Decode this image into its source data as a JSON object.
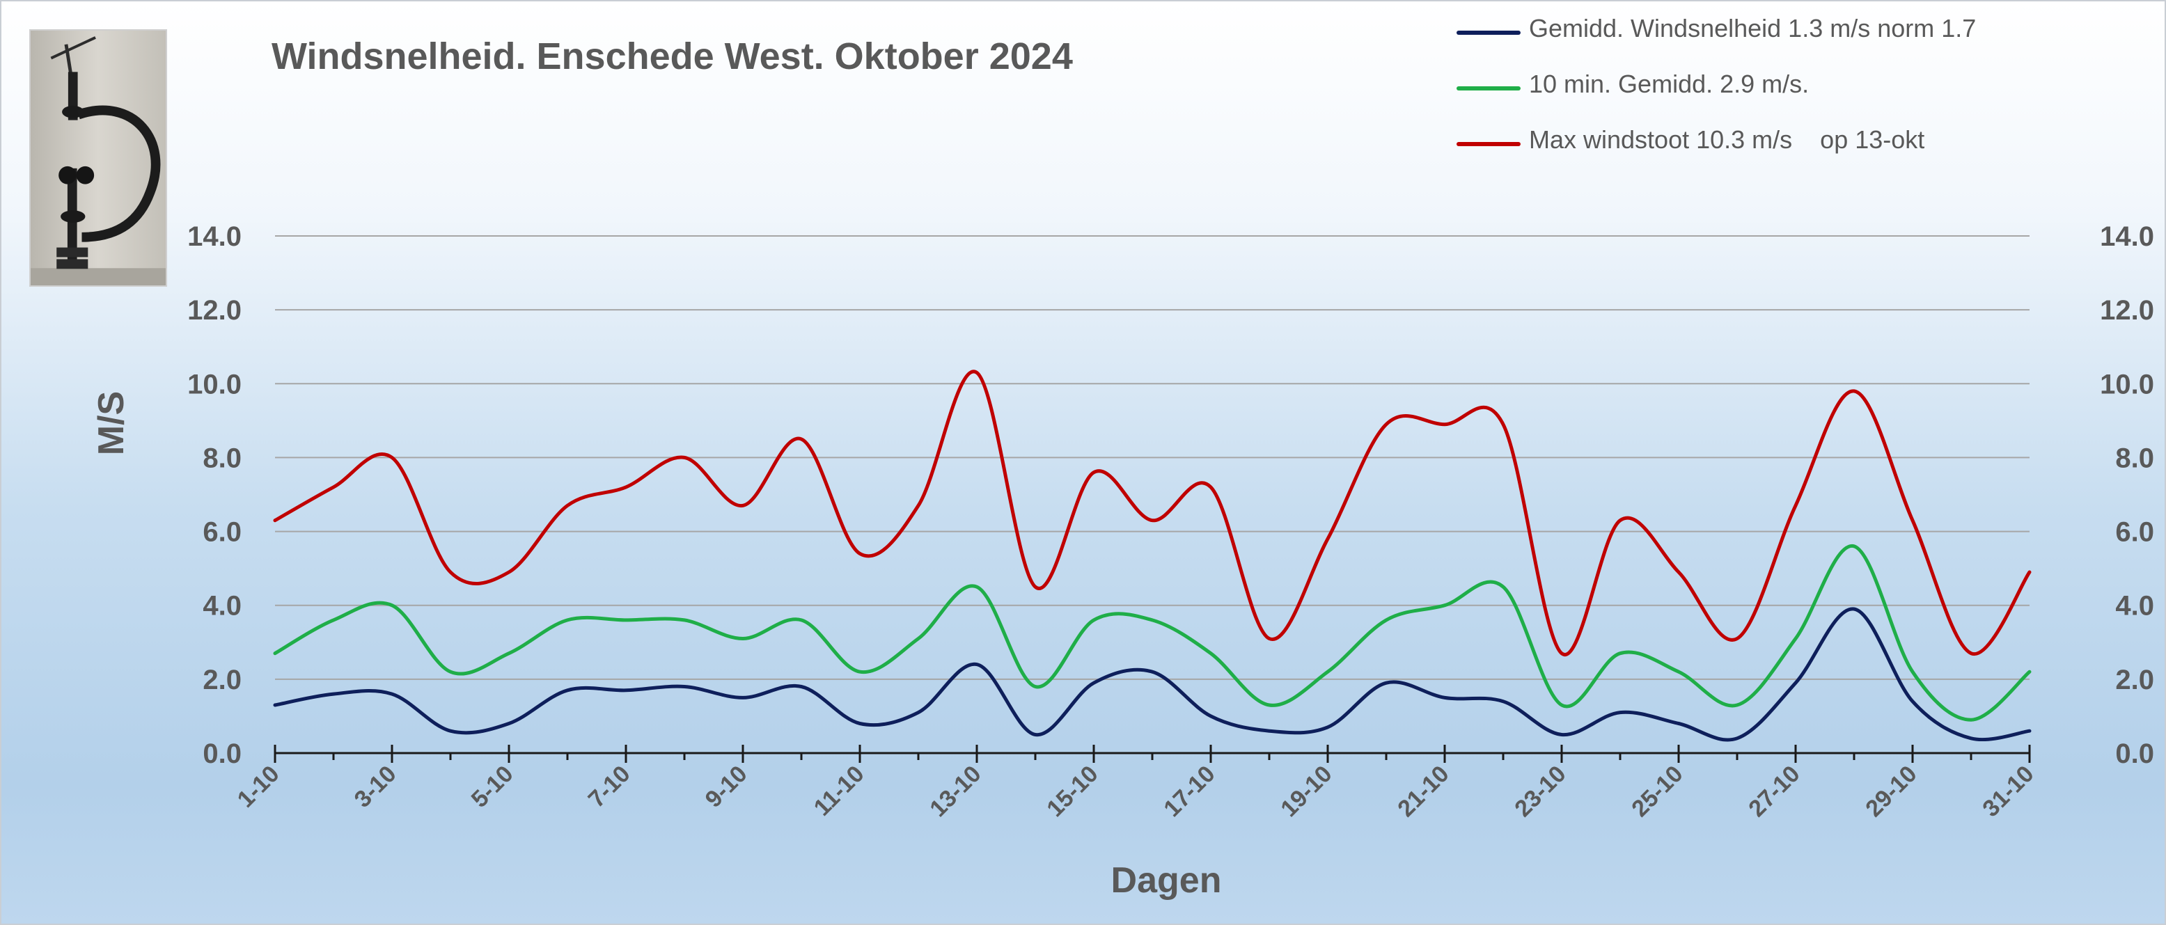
{
  "chart_data": {
    "type": "line",
    "title": "Windsnelheid. Enschede West. Oktober 2024",
    "xlabel": "Dagen",
    "ylabel": "M/S",
    "ylim": [
      0,
      14
    ],
    "yticks": [
      "0.0",
      "2.0",
      "4.0",
      "6.0",
      "8.0",
      "10.0",
      "12.0",
      "14.0"
    ],
    "x_tick_labels": [
      "1-10",
      "3-10",
      "5-10",
      "7-10",
      "9-10",
      "11-10",
      "13-10",
      "15-10",
      "17-10",
      "19-10",
      "21-10",
      "23-10",
      "25-10",
      "27-10",
      "29-10",
      "31-10"
    ],
    "x": [
      "1-10",
      "2-10",
      "3-10",
      "4-10",
      "5-10",
      "6-10",
      "7-10",
      "8-10",
      "9-10",
      "10-10",
      "11-10",
      "12-10",
      "13-10",
      "14-10",
      "15-10",
      "16-10",
      "17-10",
      "18-10",
      "19-10",
      "20-10",
      "21-10",
      "22-10",
      "23-10",
      "24-10",
      "25-10",
      "26-10",
      "27-10",
      "28-10",
      "29-10",
      "30-10",
      "31-10"
    ],
    "grid": true,
    "legend_position": "top-right",
    "series": [
      {
        "name": "Gemidd. Windsnelheid 1.3 m/s norm 1.7",
        "color": "#0e1f5b",
        "values": [
          1.3,
          1.6,
          1.6,
          0.6,
          0.8,
          1.7,
          1.7,
          1.8,
          1.5,
          1.8,
          0.8,
          1.1,
          2.4,
          0.5,
          1.9,
          2.2,
          1.0,
          0.6,
          0.7,
          1.9,
          1.5,
          1.4,
          0.5,
          1.1,
          0.8,
          0.4,
          1.9,
          3.9,
          1.4,
          0.4,
          0.6
        ]
      },
      {
        "name": "10 min. Gemidd. 2.9 m/s.",
        "color": "#1fae48",
        "values": [
          2.7,
          3.6,
          4.0,
          2.2,
          2.7,
          3.6,
          3.6,
          3.6,
          3.1,
          3.6,
          2.2,
          3.1,
          4.5,
          1.8,
          3.6,
          3.6,
          2.7,
          1.3,
          2.2,
          3.6,
          4.0,
          4.5,
          1.3,
          2.7,
          2.2,
          1.3,
          3.1,
          5.6,
          2.2,
          0.9,
          2.2
        ]
      },
      {
        "name": "Max windstoot 10.3 m/s    op 13-okt",
        "color": "#c00000",
        "values": [
          6.3,
          7.2,
          8.0,
          4.9,
          4.9,
          6.7,
          7.2,
          8.0,
          6.7,
          8.5,
          5.4,
          6.7,
          10.3,
          4.5,
          7.6,
          6.3,
          7.2,
          3.1,
          5.8,
          8.9,
          8.9,
          8.9,
          2.7,
          6.3,
          4.9,
          3.1,
          6.7,
          9.8,
          6.3,
          2.7,
          4.9
        ]
      }
    ]
  }
}
